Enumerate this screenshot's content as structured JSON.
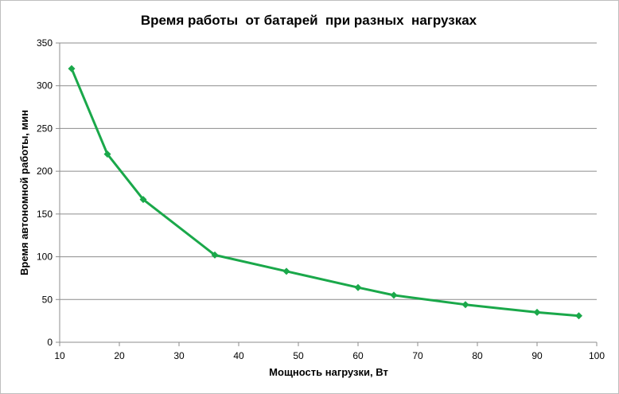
{
  "chart_data": {
    "type": "line",
    "title": "Время работы  от батарей  при разных  нагрузках",
    "xlabel": "Мощность нагрузки, Вт",
    "ylabel": "Время автономной работы, мин",
    "xlim": [
      10,
      100
    ],
    "ylim": [
      0,
      350
    ],
    "xticks": [
      10,
      20,
      30,
      40,
      50,
      60,
      70,
      80,
      90,
      100
    ],
    "yticks": [
      0,
      50,
      100,
      150,
      200,
      250,
      300,
      350
    ],
    "grid": "horizontal",
    "legend": "none",
    "series": [
      {
        "color": "#1aa84a",
        "marker": "diamond",
        "x": [
          12,
          18,
          24,
          36,
          48,
          60,
          66,
          78,
          90,
          97
        ],
        "y": [
          320,
          220,
          167,
          102,
          83,
          64,
          55,
          44,
          35,
          31
        ]
      }
    ]
  }
}
